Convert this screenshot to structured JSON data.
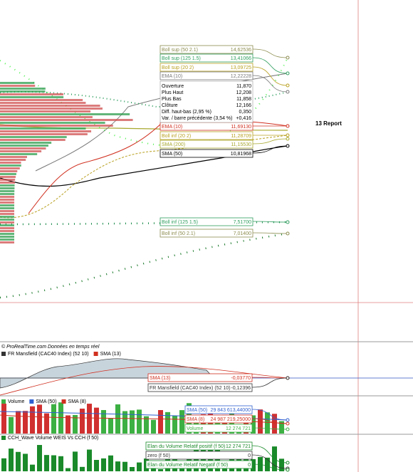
{
  "price_panel": {
    "labels": [
      {
        "label": "Boll sup (50 2.1)",
        "value": "14,62536",
        "color": "#8c8c50"
      },
      {
        "label": "Boll sup (125 1.5)",
        "value": "13,41066",
        "color": "#2e9e5e"
      },
      {
        "label": "Boll sup (20 2)",
        "value": "13,09725",
        "color": "#b8a020"
      },
      {
        "label": "EMA (10)",
        "value": "12,22228",
        "color": "#777777"
      },
      {
        "label": "EMA (10)",
        "value": "11,69130",
        "color": "#d03020"
      },
      {
        "label": "Boll inf (20 2)",
        "value": "11,28709",
        "color": "#b8a020"
      },
      {
        "label": "SMA (200)",
        "value": "11,15530",
        "color": "#a8a830"
      },
      {
        "label": "SMA (50)",
        "value": "10,81968",
        "color": "#000000"
      },
      {
        "label": "Boll inf (125 1.5)",
        "value": "7,51700",
        "color": "#2e9e5e"
      },
      {
        "label": "Boll inf (50 2.1)",
        "value": "7,01400",
        "color": "#8c8c50"
      }
    ],
    "info": [
      {
        "label": "Ouverture",
        "value": "11,870"
      },
      {
        "label": "Plus Haut",
        "value": "12,208"
      },
      {
        "label": "Plus Bas",
        "value": "11,858"
      },
      {
        "label": "Clôture",
        "value": "12,166"
      },
      {
        "label": "Diff. haut-bas (2,95 %)",
        "value": "0,350"
      },
      {
        "label": "Var. / barre précédente (3,54 %)",
        "value": "+0,416"
      }
    ],
    "annotation": "13  Report",
    "footer": "© ProRealTime.com  Données en temps réel"
  },
  "mansfield_panel": {
    "legend": [
      {
        "label": "FR Mansfield (CAC40 Index) (52 10)",
        "color": "#333333"
      },
      {
        "label": "SMA (13)",
        "color": "#d03020"
      }
    ],
    "labels": [
      {
        "label": "SMA (13)",
        "value": "-0,03770",
        "color": "#d03020"
      },
      {
        "label": "FR Mansfield (CAC40 Index) (52 10)",
        "value": "-0,12396",
        "color": "#333333"
      }
    ]
  },
  "volume_panel": {
    "legend": [
      {
        "label": "Volume",
        "color": "#3cb043"
      },
      {
        "label": "SMA (50)",
        "color": "#3060d0"
      },
      {
        "label": "SMA (8)",
        "color": "#d03020"
      }
    ],
    "labels": [
      {
        "label": "SMA (50)",
        "value": "29 843 613,44000",
        "color": "#3060d0"
      },
      {
        "label": "SMA (8)",
        "value": "24 987 219,25000",
        "color": "#d03020"
      },
      {
        "label": "Volume",
        "value": "12 274 721",
        "color": "#3cb043"
      }
    ]
  },
  "weis_panel": {
    "legend": [
      {
        "label": "CCH_Wave Volume WEIS Vs CCH (f 50)",
        "color": "#1a8a2a"
      }
    ],
    "labels": [
      {
        "label": "Elan du Volume Relatif positif (f 50)",
        "value": "12 274 721",
        "color": "#1a8a2a"
      },
      {
        "label": "zero (f 50)",
        "value": "0",
        "color": "#333333"
      },
      {
        "label": "Elan du Volume Relatif Negatif (f 50)",
        "value": "0",
        "color": "#1a8a2a"
      }
    ]
  }
}
